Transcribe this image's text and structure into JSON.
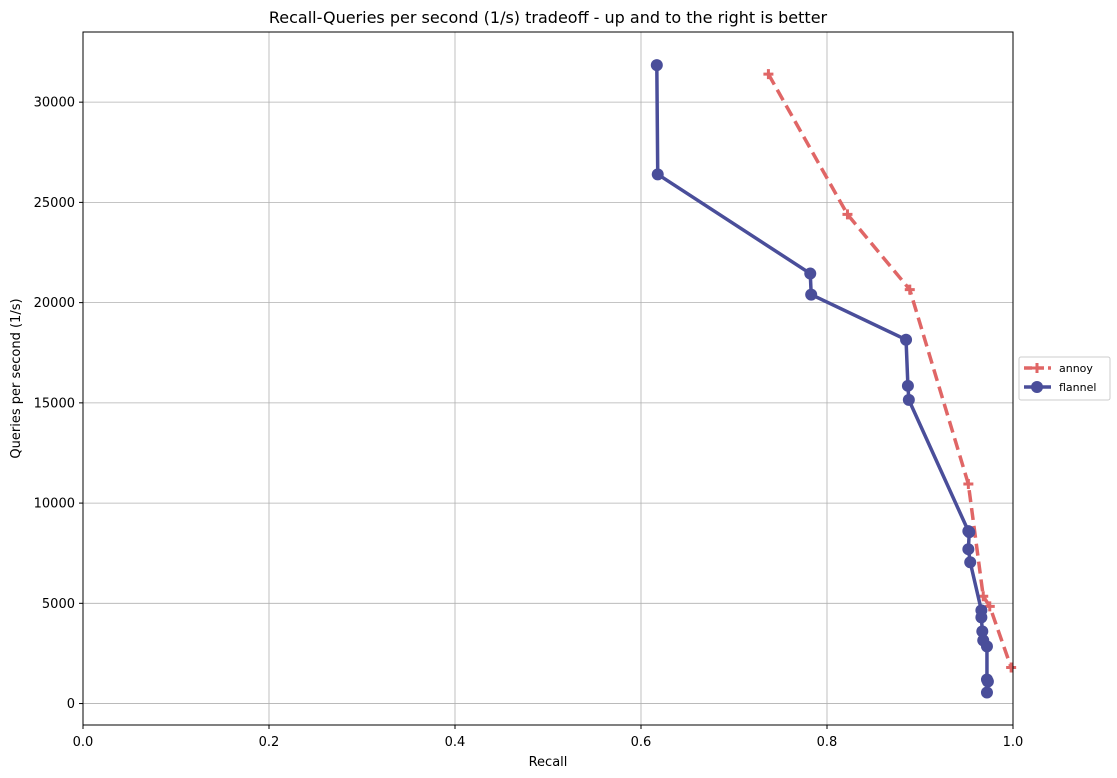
{
  "chart_data": {
    "type": "line",
    "title": "Recall-Queries per second (1/s) tradeoff - up and to the right is better",
    "xlabel": "Recall",
    "ylabel": "Queries per second (1/s)",
    "xlim": [
      0.0,
      1.0
    ],
    "ylim": [
      -1070,
      33500
    ],
    "xticks": [
      0.0,
      0.2,
      0.4,
      0.6,
      0.8,
      1.0
    ],
    "xtick_labels": [
      "0.0",
      "0.2",
      "0.4",
      "0.6",
      "0.8",
      "1.0"
    ],
    "yticks": [
      0,
      5000,
      10000,
      15000,
      20000,
      25000,
      30000
    ],
    "ytick_labels": [
      "0",
      "5000",
      "10000",
      "15000",
      "20000",
      "25000",
      "30000"
    ],
    "grid": true,
    "legend_position": "right",
    "series": [
      {
        "name": "annoy",
        "color": "#e06666",
        "line_style": "dashed",
        "marker": "plus",
        "points": [
          [
            0.737,
            31400
          ],
          [
            0.822,
            24400
          ],
          [
            0.889,
            20650
          ],
          [
            0.952,
            10950
          ],
          [
            0.968,
            5350
          ],
          [
            0.975,
            4850
          ],
          [
            0.998,
            1800
          ]
        ]
      },
      {
        "name": "flannel",
        "color": "#4a4e9a",
        "line_style": "solid",
        "marker": "circle",
        "points": [
          [
            0.617,
            31850
          ],
          [
            0.618,
            26400
          ],
          [
            0.782,
            21450
          ],
          [
            0.783,
            20400
          ],
          [
            0.885,
            18150
          ],
          [
            0.887,
            15850
          ],
          [
            0.888,
            15150
          ],
          [
            0.952,
            8600
          ],
          [
            0.953,
            8550
          ],
          [
            0.952,
            7700
          ],
          [
            0.954,
            7050
          ],
          [
            0.966,
            4650
          ],
          [
            0.966,
            4300
          ],
          [
            0.967,
            3600
          ],
          [
            0.968,
            3150
          ],
          [
            0.972,
            2850
          ],
          [
            0.972,
            1200
          ],
          [
            0.973,
            1100
          ],
          [
            0.972,
            550
          ]
        ]
      }
    ]
  }
}
